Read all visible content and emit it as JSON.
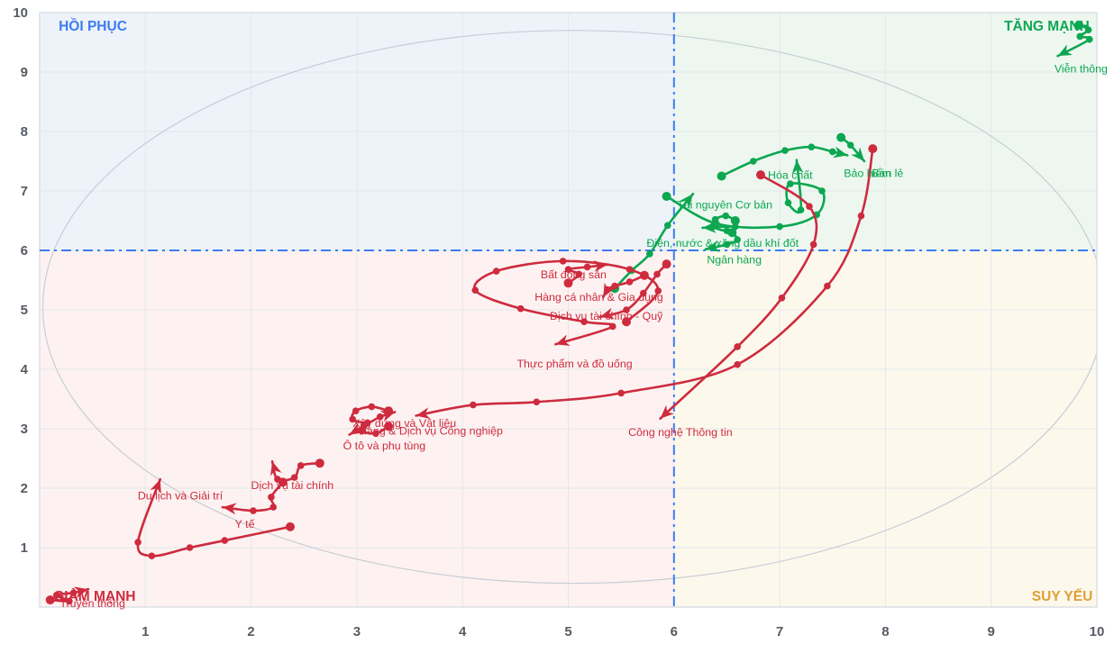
{
  "chart_data": {
    "type": "scatter",
    "subtype": "rrg-sector-rotation-trails",
    "title": "",
    "xlabel": "",
    "ylabel": "",
    "xlim": [
      0,
      10
    ],
    "ylim": [
      0,
      10
    ],
    "x_ticks": [
      1,
      2,
      3,
      4,
      5,
      6,
      7,
      8,
      9,
      10
    ],
    "y_ticks": [
      1,
      2,
      3,
      4,
      5,
      6,
      7,
      8,
      9,
      10
    ],
    "grid": true,
    "center": [
      6,
      6
    ],
    "rotation_ellipse": {
      "cx": 5.05,
      "cy": 5.05,
      "rx": 5.02,
      "ry": 4.65
    },
    "palette": {
      "up": "#0ca750",
      "down": "#ce2b3e"
    },
    "axis": {
      "tick_color": "#565b63",
      "grid_color": "#e4e7ec",
      "border_color": "#dcdfe5",
      "ellipse_color": "#c7cdd6",
      "center_line_color": "#3b7cf2"
    },
    "quadrants": {
      "top_left": {
        "label": "HỒI PHỤC",
        "color": "#3b7cf2",
        "bg": "#eef3fa",
        "pos": [
          0.18,
          9.77
        ],
        "anchor": "start"
      },
      "top_right": {
        "label": "TĂNG MẠNH",
        "color": "#0ca750",
        "bg": "#edf7f0",
        "pos": [
          9.93,
          9.77
        ],
        "anchor": "end"
      },
      "bottom_left": {
        "label": "GIẢM MẠNH",
        "color": "#ce2b3e",
        "bg": "#fdf2f1",
        "pos": [
          0.13,
          0.18
        ],
        "anchor": "start"
      },
      "bottom_right": {
        "label": "SUY YẾU",
        "color": "#e0a033",
        "bg": "#fcf8ec",
        "pos": [
          9.96,
          0.18
        ],
        "anchor": "end"
      }
    },
    "series": [
      {
        "name": "Viễn thông",
        "trend": "up",
        "points": [
          [
            9.83,
            9.79
          ],
          [
            9.92,
            9.71
          ],
          [
            9.84,
            9.6
          ],
          [
            9.93,
            9.55
          ]
        ],
        "arrow": [
          9.63,
          9.27
        ],
        "label": [
          9.85,
          9.06
        ]
      },
      {
        "name": "Bảo hiểm",
        "trend": "up",
        "points": [
          [
            6.45,
            7.25
          ],
          [
            6.75,
            7.5
          ],
          [
            7.05,
            7.68
          ],
          [
            7.3,
            7.74
          ],
          [
            7.5,
            7.66
          ]
        ],
        "arrow": [
          7.64,
          7.6
        ],
        "label": [
          7.83,
          7.3
        ]
      },
      {
        "name": "Bán lẻ",
        "trend": "up",
        "points": [
          [
            7.58,
            7.9
          ],
          [
            7.67,
            7.77
          ]
        ],
        "arrow": [
          7.8,
          7.5
        ],
        "label": [
          8.02,
          7.3
        ]
      },
      {
        "name": "Hóa chất",
        "trend": "up",
        "points": [
          [
            5.93,
            6.91
          ],
          [
            6.4,
            6.45
          ],
          [
            7.0,
            6.4
          ],
          [
            7.35,
            6.6
          ],
          [
            7.4,
            7.0
          ],
          [
            7.1,
            7.12
          ],
          [
            7.08,
            6.8
          ],
          [
            7.2,
            6.68
          ]
        ],
        "arrow": [
          7.16,
          7.52
        ],
        "label": [
          7.1,
          7.27
        ]
      },
      {
        "name": "Tài nguyên Cơ bản",
        "trend": "up",
        "points": [
          [
            5.44,
            5.36
          ],
          [
            5.6,
            5.66
          ],
          [
            5.77,
            5.94
          ],
          [
            5.94,
            6.42
          ]
        ],
        "arrow": [
          6.18,
          6.95
        ],
        "label": [
          6.48,
          6.77
        ]
      },
      {
        "name": "Điện, nước & xăng dầu khí đốt",
        "trend": "up",
        "points": [
          [
            6.58,
            6.5
          ],
          [
            6.49,
            6.58
          ],
          [
            6.39,
            6.52
          ],
          [
            6.37,
            6.4
          ],
          [
            6.5,
            6.33
          ],
          [
            6.58,
            6.4
          ]
        ],
        "arrow": [
          6.27,
          6.38
        ],
        "label": [
          6.46,
          6.13
        ]
      },
      {
        "name": "Ngân hàng",
        "trend": "up",
        "points": [
          [
            6.55,
            6.3
          ],
          [
            6.6,
            6.18
          ],
          [
            6.5,
            6.1
          ]
        ],
        "arrow": [
          6.3,
          6.02
        ],
        "label": [
          6.57,
          5.85
        ]
      },
      {
        "name": "Bất động sản",
        "trend": "down",
        "points": [
          [
            5.0,
            5.45
          ],
          [
            5.1,
            5.6
          ],
          [
            5.0,
            5.68
          ],
          [
            5.18,
            5.72
          ]
        ],
        "arrow": [
          5.37,
          5.76
        ],
        "label": [
          5.05,
          5.6
        ]
      },
      {
        "name": "Hàng cá nhân & Gia dụng",
        "trend": "down",
        "points": [
          [
            5.72,
            5.58
          ],
          [
            5.58,
            5.47
          ],
          [
            5.44,
            5.4
          ],
          [
            5.37,
            5.34
          ]
        ],
        "arrow": [
          5.33,
          5.21
        ],
        "label": [
          5.29,
          5.22
        ]
      },
      {
        "name": "Dịch vụ tài chính - Quỹ",
        "trend": "down",
        "points": [
          [
            5.93,
            5.77
          ],
          [
            5.84,
            5.6
          ],
          [
            5.71,
            5.28
          ],
          [
            5.55,
            5.0
          ]
        ],
        "arrow": [
          5.3,
          4.88
        ],
        "label": [
          5.36,
          4.9
        ]
      },
      {
        "name": "Thực phẩm và đồ uống",
        "trend": "down",
        "points": [
          [
            5.55,
            4.8
          ],
          [
            5.85,
            5.32
          ],
          [
            5.58,
            5.68
          ],
          [
            4.95,
            5.82
          ],
          [
            4.32,
            5.65
          ],
          [
            4.12,
            5.33
          ],
          [
            4.55,
            5.02
          ],
          [
            5.15,
            4.8
          ],
          [
            5.42,
            4.72
          ]
        ],
        "arrow": [
          4.88,
          4.42
        ],
        "label": [
          5.06,
          4.1
        ]
      },
      {
        "name": "Công nghệ Thông tin",
        "trend": "down",
        "points": [
          [
            6.82,
            7.27
          ],
          [
            7.28,
            6.74
          ],
          [
            7.32,
            6.1
          ],
          [
            7.02,
            5.2
          ],
          [
            6.6,
            4.38
          ]
        ],
        "arrow": [
          5.87,
          3.17
        ],
        "label": [
          6.06,
          2.95
        ]
      },
      {
        "name": "Hàng & Dịch vụ Công nghiệp",
        "trend": "down",
        "points": [
          [
            7.88,
            7.71
          ],
          [
            7.77,
            6.58
          ],
          [
            7.45,
            5.4
          ],
          [
            6.6,
            4.08
          ],
          [
            5.5,
            3.6
          ],
          [
            4.7,
            3.45
          ],
          [
            4.1,
            3.4
          ]
        ],
        "arrow": [
          3.56,
          3.22
        ],
        "label": [
          3.7,
          2.97
        ]
      },
      {
        "name": "Xây dựng và Vật liệu",
        "trend": "down",
        "points": [
          [
            3.3,
            3.3
          ],
          [
            3.14,
            3.37
          ],
          [
            2.99,
            3.3
          ],
          [
            2.96,
            3.16
          ],
          [
            3.1,
            3.1
          ],
          [
            3.22,
            3.2
          ]
        ],
        "arrow": [
          3.36,
          3.28
        ],
        "label": [
          3.45,
          3.1
        ]
      },
      {
        "name": "Ô tô và phụ tùng",
        "trend": "down",
        "points": [
          [
            3.3,
            3.04
          ],
          [
            3.18,
            2.92
          ],
          [
            3.05,
            2.96
          ],
          [
            3.07,
            3.05
          ]
        ],
        "arrow": [
          2.93,
          2.9
        ],
        "label": [
          3.26,
          2.72
        ]
      },
      {
        "name": "Dịch vụ tài chính",
        "trend": "down",
        "points": [
          [
            2.65,
            2.42
          ],
          [
            2.47,
            2.38
          ],
          [
            2.41,
            2.18
          ],
          [
            2.25,
            2.15
          ]
        ],
        "arrow": [
          2.2,
          2.45
        ],
        "label": [
          2.39,
          2.05
        ]
      },
      {
        "name": "Y tế",
        "trend": "down",
        "points": [
          [
            2.3,
            2.1
          ],
          [
            2.19,
            1.85
          ],
          [
            2.21,
            1.68
          ],
          [
            2.02,
            1.62
          ]
        ],
        "arrow": [
          1.73,
          1.68
        ],
        "label": [
          1.94,
          1.4
        ]
      },
      {
        "name": "Du lịch và Giải trí",
        "trend": "down",
        "points": [
          [
            2.37,
            1.35
          ],
          [
            1.75,
            1.12
          ],
          [
            1.42,
            1.0
          ],
          [
            1.06,
            0.86
          ],
          [
            0.93,
            1.09
          ]
        ],
        "arrow": [
          1.14,
          2.15
        ],
        "label": [
          1.33,
          1.88
        ]
      },
      {
        "name": "Truyền thông",
        "trend": "down",
        "points": [
          [
            0.1,
            0.12
          ],
          [
            0.28,
            0.1
          ],
          [
            0.16,
            0.2
          ],
          [
            0.32,
            0.24
          ]
        ],
        "arrow": [
          0.46,
          0.3
        ],
        "label": [
          0.5,
          0.07
        ]
      }
    ]
  }
}
